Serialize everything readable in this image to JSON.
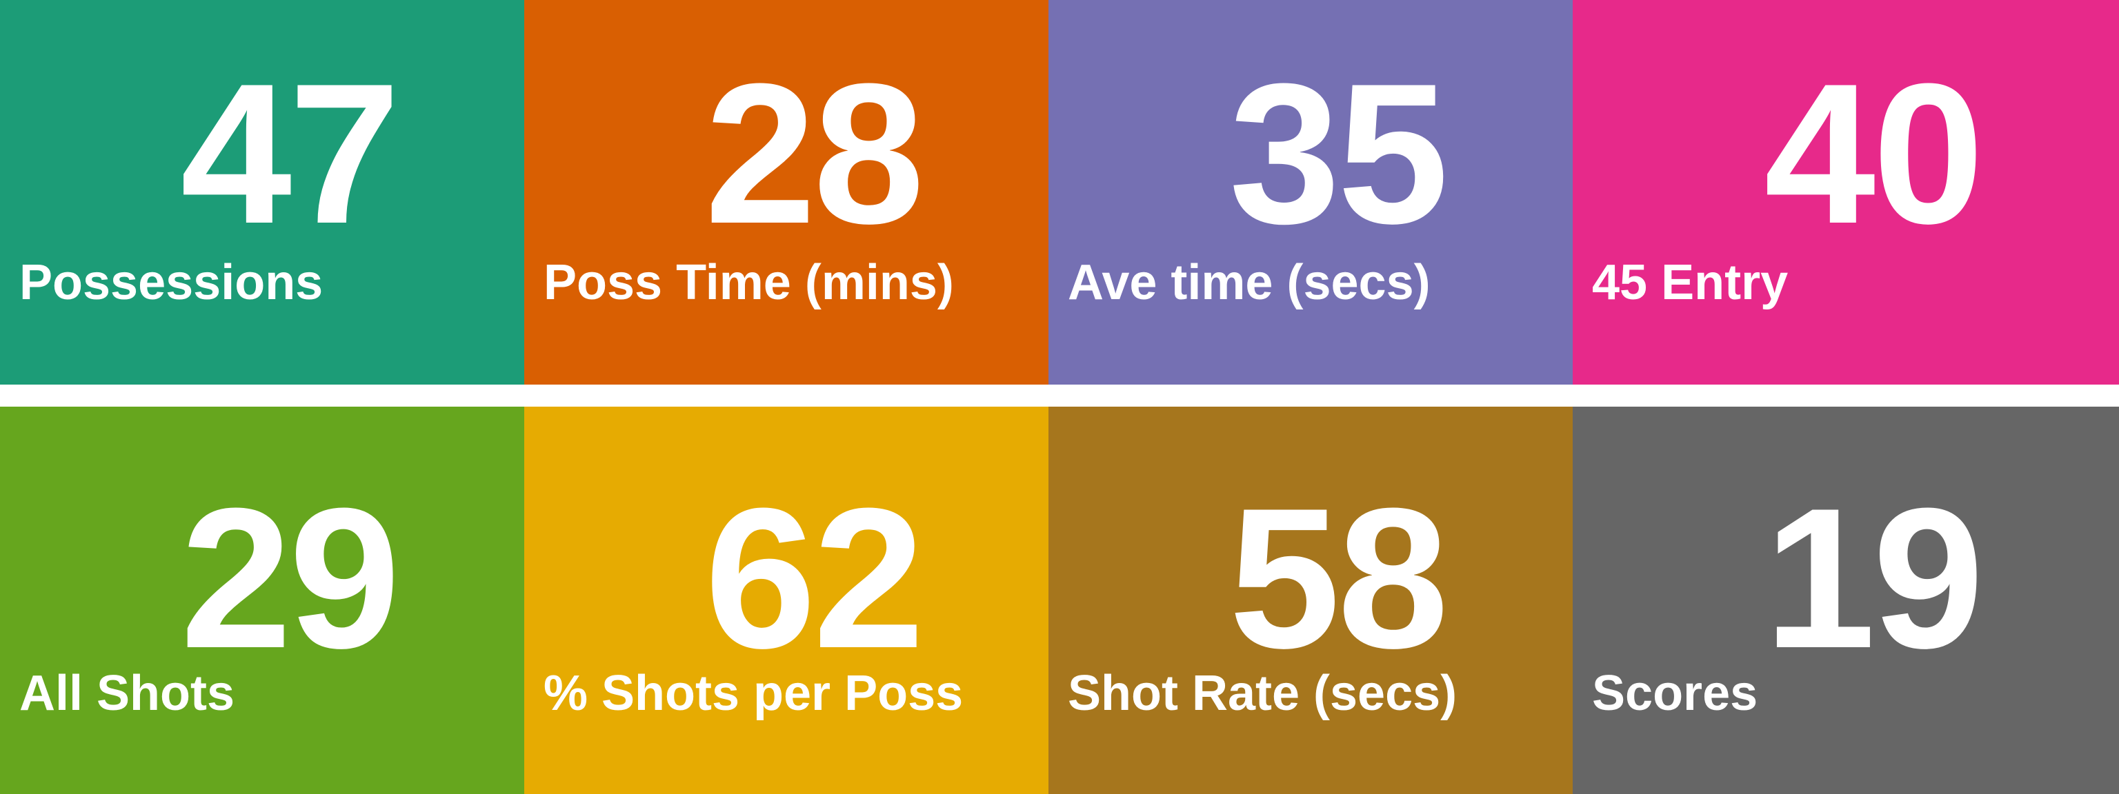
{
  "tiles_top": [
    {
      "value": "47",
      "label": "Possessions",
      "color": "#1c9c77"
    },
    {
      "value": "28",
      "label": "Poss Time (mins)",
      "color": "#d95f02"
    },
    {
      "value": "35",
      "label": "Ave time (secs)",
      "color": "#7570b3"
    },
    {
      "value": "40",
      "label": "45 Entry",
      "color": "#e7298a"
    }
  ],
  "tiles_bottom": [
    {
      "value": "29",
      "label": "All Shots",
      "color": "#66a61e"
    },
    {
      "value": "62",
      "label": "% Shots per Poss",
      "color": "#e6ab02"
    },
    {
      "value": "58",
      "label": "Shot Rate (secs)",
      "color": "#a6761d"
    },
    {
      "value": "19",
      "label": "Scores",
      "color": "#666666"
    }
  ]
}
